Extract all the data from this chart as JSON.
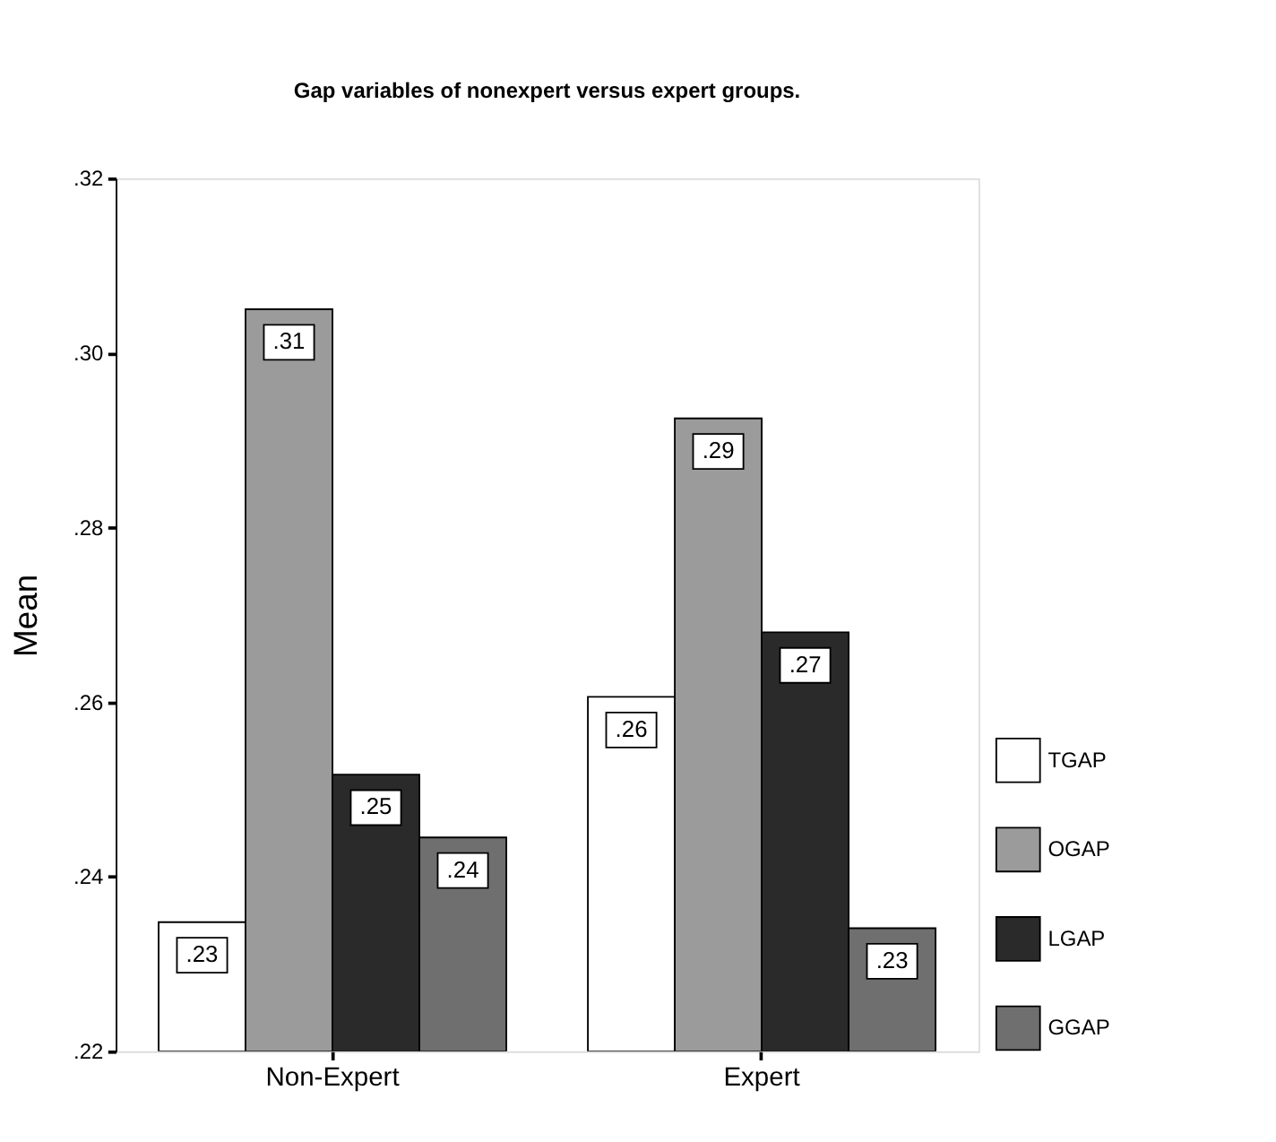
{
  "chart_data": {
    "type": "bar",
    "title": "Gap variables of nonexpert versus expert groups.",
    "ylabel": "Mean",
    "categories": [
      "Non-Expert",
      "Expert"
    ],
    "series": [
      {
        "name": "TGAP",
        "color": "#ffffff",
        "values": [
          0.2348,
          0.2606
        ],
        "value_labels": [
          ".23",
          ".26"
        ]
      },
      {
        "name": "OGAP",
        "color": "#9b9b9b",
        "values": [
          0.305,
          0.2925
        ],
        "value_labels": [
          ".31",
          ".29"
        ]
      },
      {
        "name": "LGAP",
        "color": "#2a2a2a",
        "values": [
          0.2517,
          0.268
        ],
        "value_labels": [
          ".25",
          ".27"
        ]
      },
      {
        "name": "GGAP",
        "color": "#6f6f6f",
        "values": [
          0.2445,
          0.2341
        ],
        "value_labels": [
          ".24",
          ".23"
        ]
      }
    ],
    "ylim": [
      0.22,
      0.32
    ],
    "yticks": [
      {
        "value": 0.22,
        "label": ".22"
      },
      {
        "value": 0.24,
        "label": ".24"
      },
      {
        "value": 0.26,
        "label": ".26"
      },
      {
        "value": 0.28,
        "label": ".28"
      },
      {
        "value": 0.3,
        "label": ".30"
      },
      {
        "value": 0.32,
        "label": ".32"
      }
    ],
    "grid": false,
    "legend": "right"
  }
}
